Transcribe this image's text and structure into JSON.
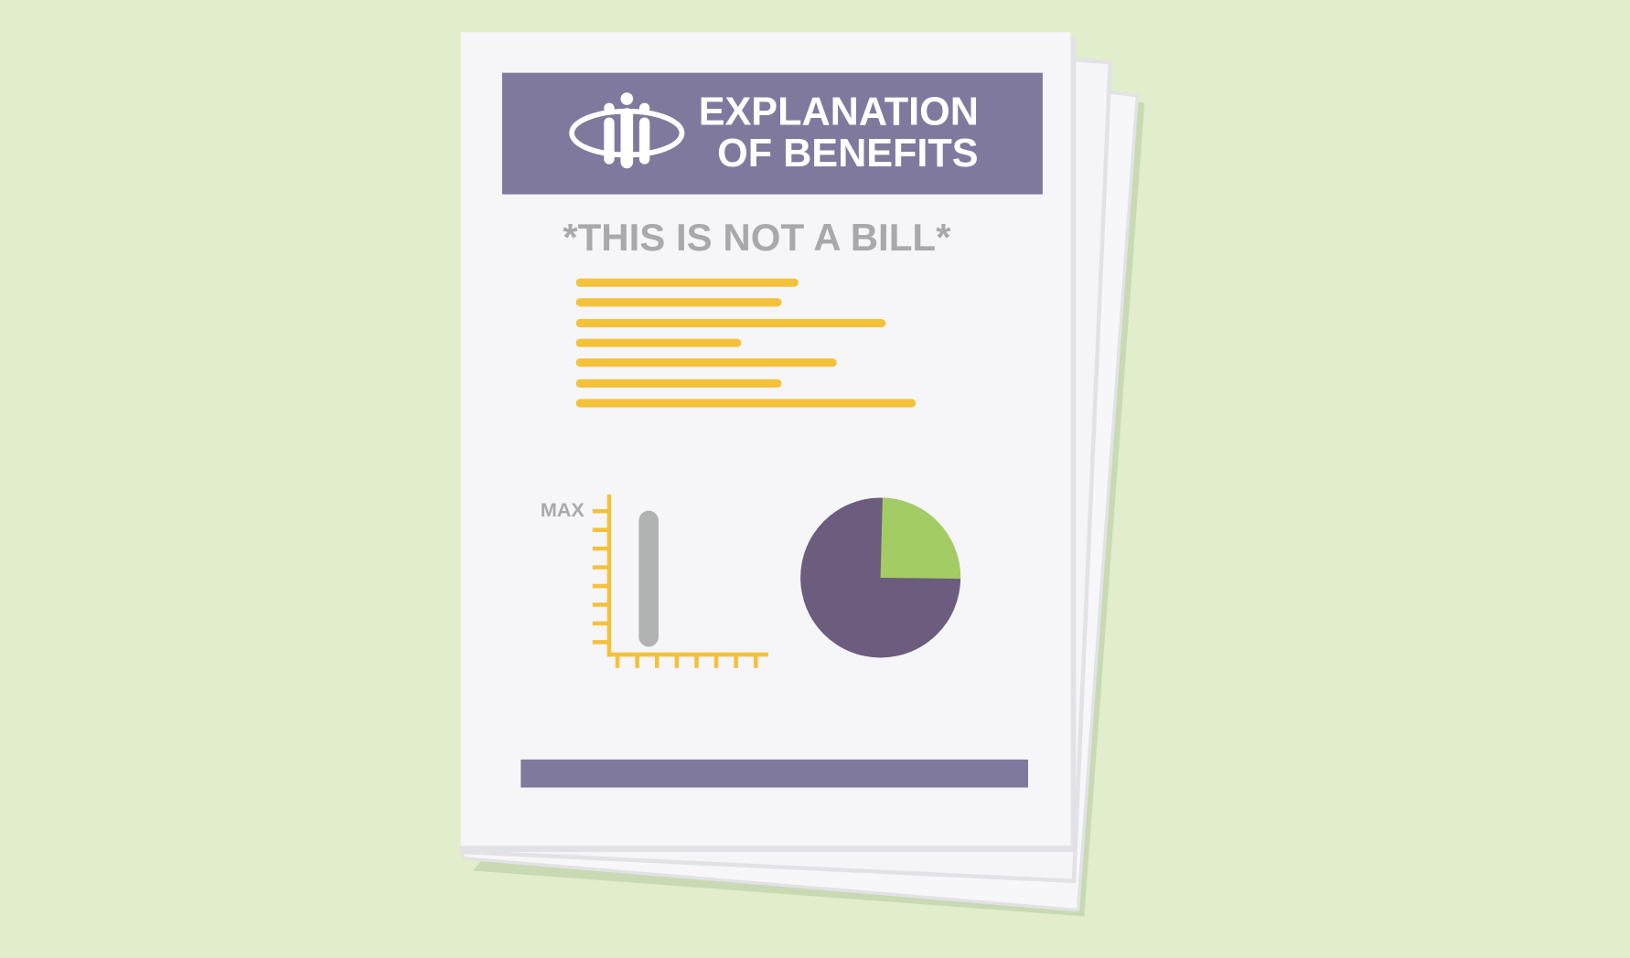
{
  "header": {
    "title_line_1": "EXPLANATION",
    "title_line_2": "OF BENEFITS"
  },
  "notice": "*THIS IS NOT A BILL*",
  "chart_label": "MAX"
}
